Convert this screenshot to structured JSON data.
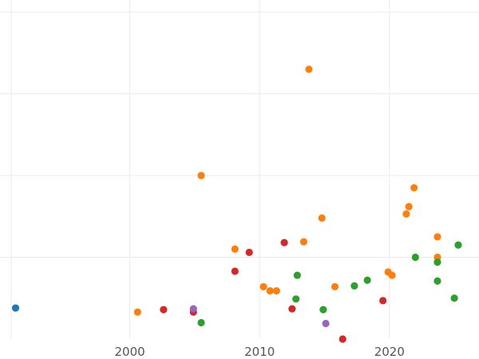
{
  "chart_data": {
    "type": "scatter",
    "title": "",
    "xlabel": "",
    "ylabel": "",
    "xlim": [
      1990.0,
      2026.9
    ],
    "ylim": [
      0.0,
      4.05
    ],
    "grid": true,
    "x_ticks": [
      2000,
      2010,
      2020
    ],
    "x_tick_labels": [
      "2000",
      "2010",
      "2020"
    ],
    "y_ticks": [
      1,
      2,
      3,
      4
    ],
    "colors": {
      "blue": "#1f77b4",
      "orange": "#ff7f0e",
      "green": "#2ca02c",
      "red": "#d62728",
      "purple": "#9467bd"
    },
    "series": [
      {
        "color": "#1f77b4",
        "points": [
          {
            "x": 1991.2,
            "y": 0.38
          }
        ]
      },
      {
        "color": "#ff7f0e",
        "points": [
          {
            "x": 2000.6,
            "y": 0.33
          },
          {
            "x": 2005.5,
            "y": 2.0
          },
          {
            "x": 2008.1,
            "y": 1.1
          },
          {
            "x": 2010.3,
            "y": 0.64
          },
          {
            "x": 2010.8,
            "y": 0.59
          },
          {
            "x": 2011.3,
            "y": 0.59
          },
          {
            "x": 2013.4,
            "y": 1.19
          },
          {
            "x": 2013.8,
            "y": 3.3
          },
          {
            "x": 2014.8,
            "y": 1.48
          },
          {
            "x": 2015.8,
            "y": 0.64
          },
          {
            "x": 2019.9,
            "y": 0.82
          },
          {
            "x": 2020.2,
            "y": 0.78
          },
          {
            "x": 2021.3,
            "y": 1.53
          },
          {
            "x": 2021.5,
            "y": 1.62
          },
          {
            "x": 2021.9,
            "y": 1.85
          },
          {
            "x": 2023.7,
            "y": 1.0
          },
          {
            "x": 2023.7,
            "y": 1.25
          }
        ]
      },
      {
        "color": "#2ca02c",
        "points": [
          {
            "x": 2005.5,
            "y": 0.2
          },
          {
            "x": 2012.8,
            "y": 0.49
          },
          {
            "x": 2012.9,
            "y": 0.78
          },
          {
            "x": 2014.9,
            "y": 0.36
          },
          {
            "x": 2017.3,
            "y": 0.65
          },
          {
            "x": 2018.3,
            "y": 0.72
          },
          {
            "x": 2022.0,
            "y": 1.0
          },
          {
            "x": 2023.7,
            "y": 0.71
          },
          {
            "x": 2023.7,
            "y": 0.94
          },
          {
            "x": 2025.0,
            "y": 0.5
          },
          {
            "x": 2025.3,
            "y": 1.15
          }
        ]
      },
      {
        "color": "#d62728",
        "points": [
          {
            "x": 2002.6,
            "y": 0.36
          },
          {
            "x": 2004.9,
            "y": 0.33
          },
          {
            "x": 2008.1,
            "y": 0.83
          },
          {
            "x": 2009.2,
            "y": 1.06
          },
          {
            "x": 2011.9,
            "y": 1.18
          },
          {
            "x": 2012.5,
            "y": 0.37
          },
          {
            "x": 2016.4,
            "y": 0.0
          },
          {
            "x": 2019.5,
            "y": 0.47
          }
        ]
      },
      {
        "color": "#9467bd",
        "points": [
          {
            "x": 2004.9,
            "y": 0.37
          },
          {
            "x": 2015.1,
            "y": 0.19
          }
        ]
      }
    ]
  }
}
